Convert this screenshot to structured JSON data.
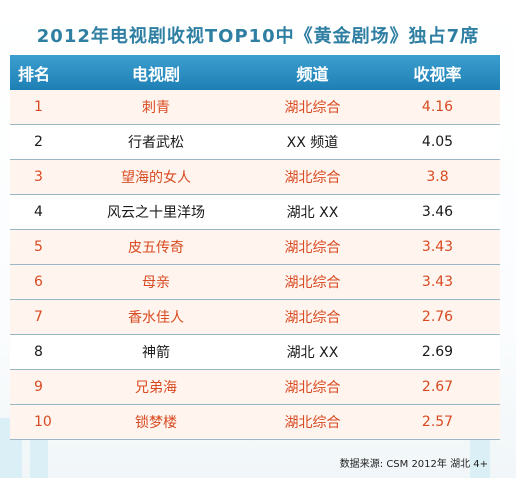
{
  "title": "2012年电视剧收视TOP10中《黄金剧场》独占7席",
  "table": {
    "headers": [
      "排名",
      "电视剧",
      "频道",
      "收视率"
    ],
    "rows": [
      {
        "rank": "1",
        "drama": "刺青",
        "channel": "湖北综合",
        "rating": "4.16"
      },
      {
        "rank": "2",
        "drama": "行者武松",
        "channel": "XX 频道",
        "rating": "4.05"
      },
      {
        "rank": "3",
        "drama": "望海的女人",
        "channel": "湖北综合",
        "rating": "3.8"
      },
      {
        "rank": "4",
        "drama": "风云之十里洋场",
        "channel": "湖北 XX",
        "rating": "3.46"
      },
      {
        "rank": "5",
        "drama": "皮五传奇",
        "channel": "湖北综合",
        "rating": "3.43"
      },
      {
        "rank": "6",
        "drama": "母亲",
        "channel": "湖北综合",
        "rating": "3.43"
      },
      {
        "rank": "7",
        "drama": "香水佳人",
        "channel": "湖北综合",
        "rating": "2.76"
      },
      {
        "rank": "8",
        "drama": "神箭",
        "channel": "湖北 XX",
        "rating": "2.69"
      },
      {
        "rank": "9",
        "drama": "兄弟海",
        "channel": "湖北综合",
        "rating": "2.67"
      },
      {
        "rank": "10",
        "drama": "锁梦楼",
        "channel": "湖北综合",
        "rating": "2.57"
      }
    ]
  },
  "source": "数据来源: CSM 2012年 湖北 4+",
  "colors": {
    "title": "#2f7fa3",
    "header_bg": "#2a8bc0",
    "highlight_text": "#d84a22",
    "highlight_row_bg": "#fff5ee"
  }
}
